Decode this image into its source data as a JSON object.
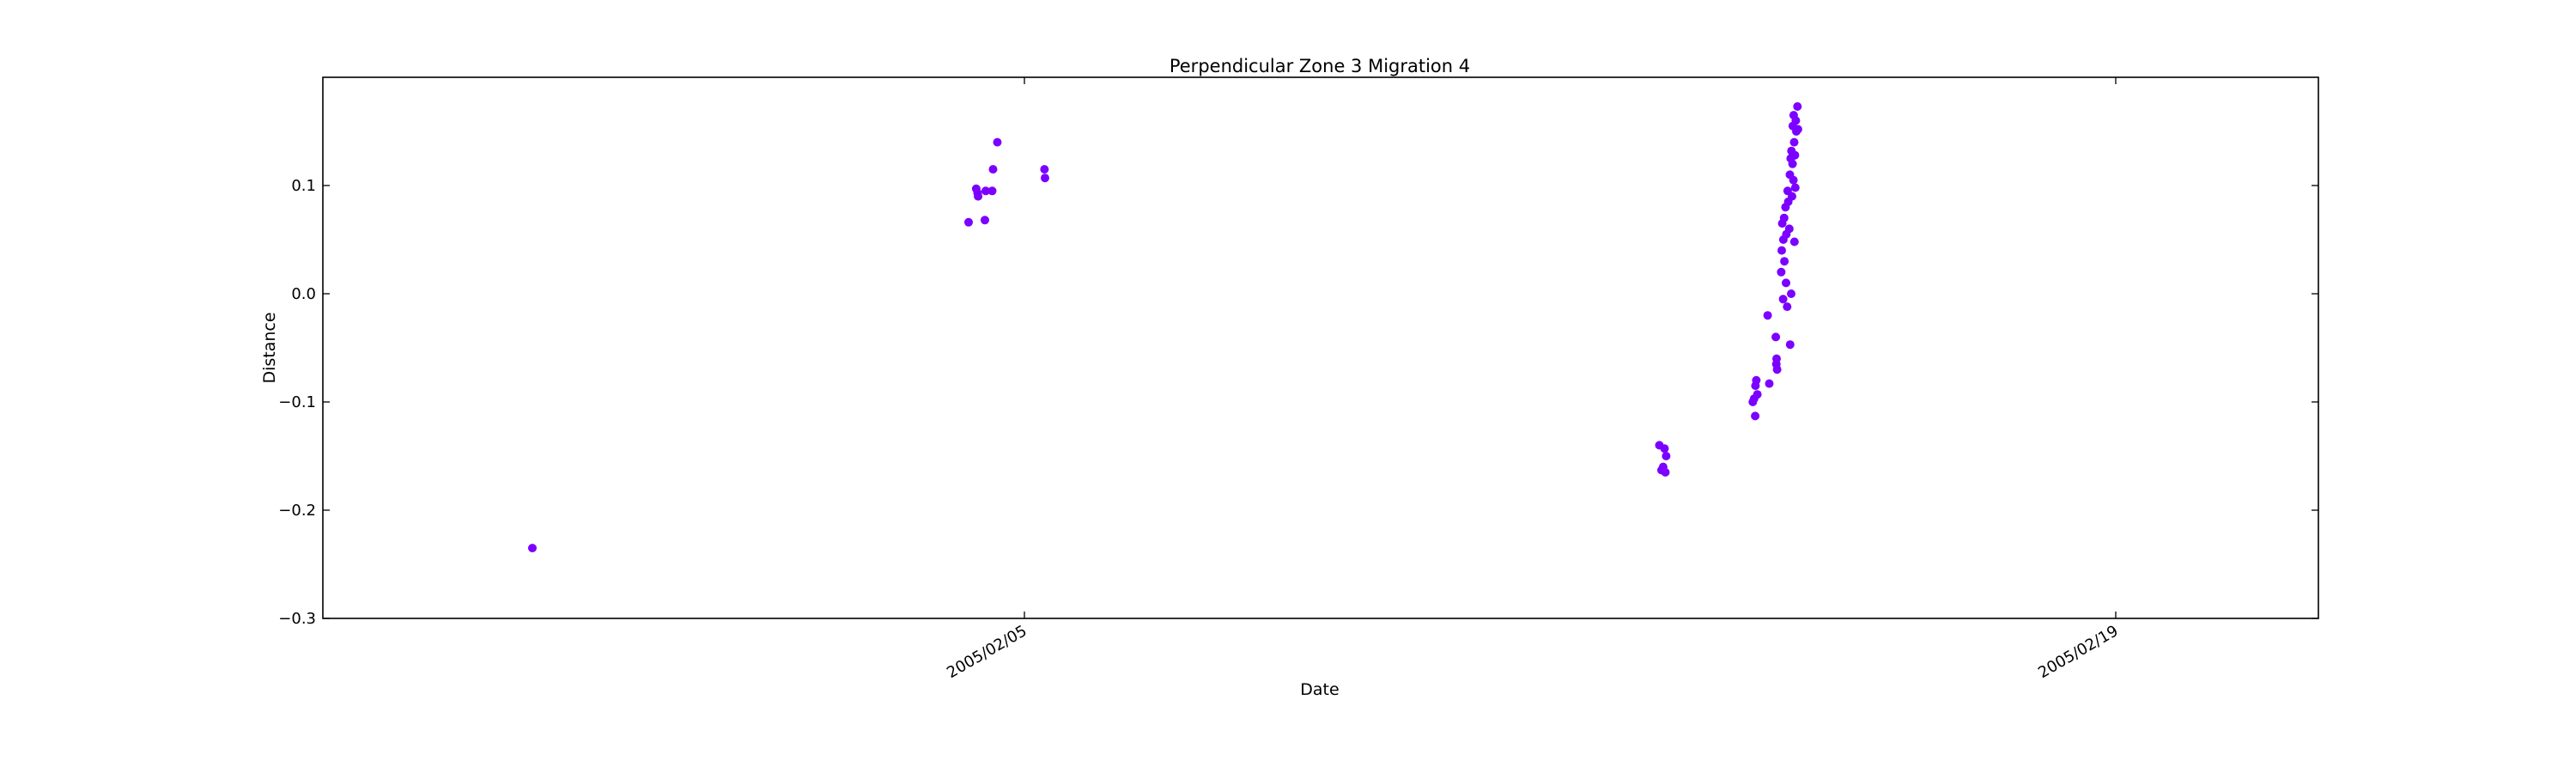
{
  "chart_data": {
    "type": "scatter",
    "title": "Perpendicular Zone 3 Migration 4",
    "xlabel": "Date",
    "ylabel": "Distance",
    "ylim": [
      -0.3,
      0.2
    ],
    "xlim": [
      "2005-01-27 00:00",
      "2005-02-21 14:24"
    ],
    "y_ticks": [
      -0.3,
      -0.2,
      -0.1,
      0.0,
      0.1
    ],
    "y_tick_labels": [
      "−0.3",
      "−0.2",
      "−0.1",
      "0.0",
      "0.1"
    ],
    "x_ticks": [
      "2005-02-05",
      "2005-02-19"
    ],
    "x_tick_labels": [
      "2005/02/05",
      "2005/02/19"
    ],
    "grid": false,
    "series": [
      {
        "color": "#7b00ff",
        "points": [
          {
            "x": "2005-01-29 16:30",
            "y": -0.235
          },
          {
            "x": "2005-02-04 06:48",
            "y": 0.066
          },
          {
            "x": "2005-02-04 09:10",
            "y": 0.097
          },
          {
            "x": "2005-02-04 09:35",
            "y": 0.093
          },
          {
            "x": "2005-02-04 09:45",
            "y": 0.09
          },
          {
            "x": "2005-02-04 11:50",
            "y": 0.068
          },
          {
            "x": "2005-02-04 12:05",
            "y": 0.095
          },
          {
            "x": "2005-02-04 14:05",
            "y": 0.095
          },
          {
            "x": "2005-02-04 14:20",
            "y": 0.115
          },
          {
            "x": "2005-02-04 15:40",
            "y": 0.14
          },
          {
            "x": "2005-02-05 06:10",
            "y": 0.115
          },
          {
            "x": "2005-02-05 06:20",
            "y": 0.107
          },
          {
            "x": "2005-02-13 03:30",
            "y": -0.14
          },
          {
            "x": "2005-02-13 04:10",
            "y": -0.163
          },
          {
            "x": "2005-02-13 04:40",
            "y": -0.16
          },
          {
            "x": "2005-02-13 05:05",
            "y": -0.143
          },
          {
            "x": "2005-02-13 05:20",
            "y": -0.165
          },
          {
            "x": "2005-02-13 05:35",
            "y": -0.15
          },
          {
            "x": "2005-02-14 08:15",
            "y": -0.1
          },
          {
            "x": "2005-02-14 08:40",
            "y": -0.097
          },
          {
            "x": "2005-02-14 09:00",
            "y": -0.113
          },
          {
            "x": "2005-02-14 09:05",
            "y": -0.085
          },
          {
            "x": "2005-02-14 09:20",
            "y": -0.08
          },
          {
            "x": "2005-02-14 09:40",
            "y": -0.093
          },
          {
            "x": "2005-02-14 12:50",
            "y": -0.02
          },
          {
            "x": "2005-02-14 13:20",
            "y": -0.083
          },
          {
            "x": "2005-02-14 15:20",
            "y": -0.04
          },
          {
            "x": "2005-02-14 15:30",
            "y": -0.065
          },
          {
            "x": "2005-02-14 15:35",
            "y": -0.06
          },
          {
            "x": "2005-02-14 15:45",
            "y": -0.07
          },
          {
            "x": "2005-02-14 17:00",
            "y": 0.02
          },
          {
            "x": "2005-02-14 17:10",
            "y": 0.04
          },
          {
            "x": "2005-02-14 17:20",
            "y": 0.065
          },
          {
            "x": "2005-02-14 17:35",
            "y": -0.005
          },
          {
            "x": "2005-02-14 17:40",
            "y": 0.05
          },
          {
            "x": "2005-02-14 17:55",
            "y": 0.07
          },
          {
            "x": "2005-02-14 18:00",
            "y": 0.03
          },
          {
            "x": "2005-02-14 18:20",
            "y": 0.08
          },
          {
            "x": "2005-02-14 18:30",
            "y": 0.01
          },
          {
            "x": "2005-02-14 18:35",
            "y": 0.055
          },
          {
            "x": "2005-02-14 18:50",
            "y": -0.012
          },
          {
            "x": "2005-02-14 19:00",
            "y": 0.095
          },
          {
            "x": "2005-02-14 19:10",
            "y": 0.085
          },
          {
            "x": "2005-02-14 19:30",
            "y": 0.06
          },
          {
            "x": "2005-02-14 19:40",
            "y": 0.11
          },
          {
            "x": "2005-02-14 19:45",
            "y": -0.047
          },
          {
            "x": "2005-02-14 19:55",
            "y": 0.125
          },
          {
            "x": "2005-02-14 20:05",
            "y": 0.0
          },
          {
            "x": "2005-02-14 20:10",
            "y": 0.132
          },
          {
            "x": "2005-02-14 20:20",
            "y": 0.09
          },
          {
            "x": "2005-02-14 20:30",
            "y": 0.12
          },
          {
            "x": "2005-02-14 20:35",
            "y": 0.155
          },
          {
            "x": "2005-02-14 20:45",
            "y": 0.105
          },
          {
            "x": "2005-02-14 20:50",
            "y": 0.165
          },
          {
            "x": "2005-02-14 21:00",
            "y": 0.14
          },
          {
            "x": "2005-02-14 21:05",
            "y": 0.048
          },
          {
            "x": "2005-02-14 21:15",
            "y": 0.128
          },
          {
            "x": "2005-02-14 21:20",
            "y": 0.098
          },
          {
            "x": "2005-02-14 21:30",
            "y": 0.16
          },
          {
            "x": "2005-02-14 21:40",
            "y": 0.15
          },
          {
            "x": "2005-02-14 22:00",
            "y": 0.173
          },
          {
            "x": "2005-02-14 22:10",
            "y": 0.152
          }
        ]
      }
    ]
  }
}
